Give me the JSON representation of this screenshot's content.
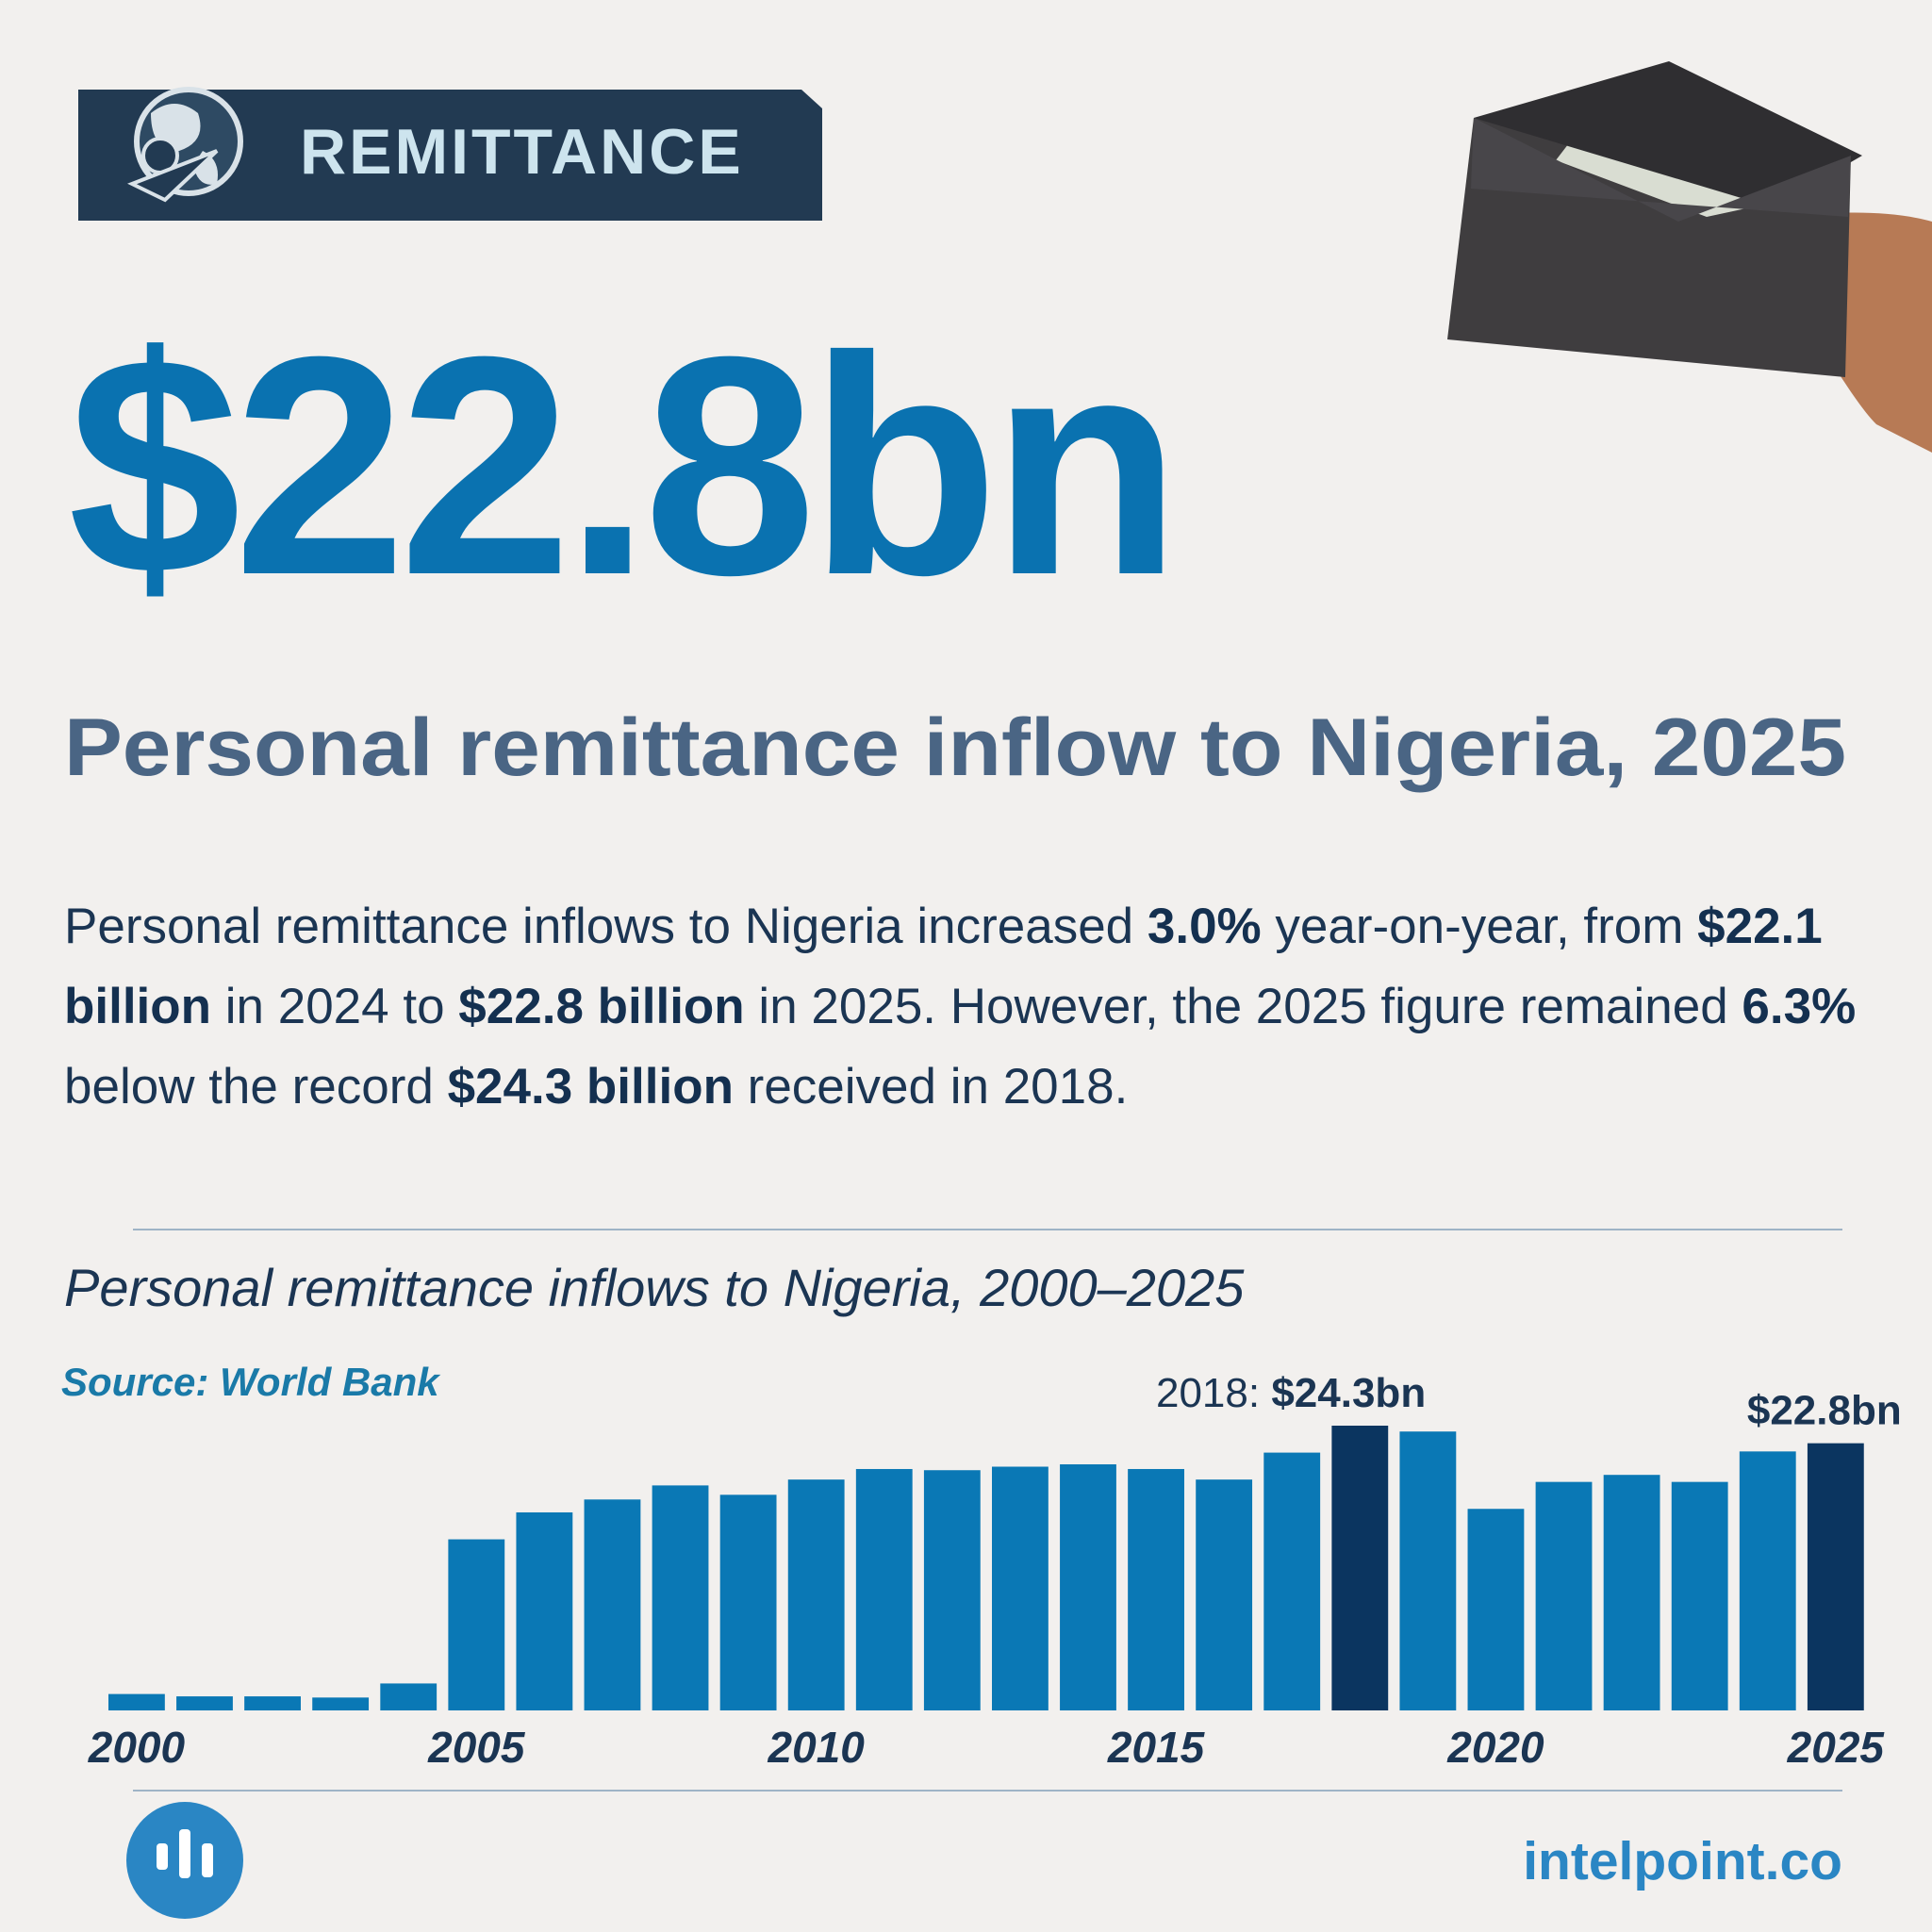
{
  "header": {
    "badge": "REMITTANCE",
    "headline_value": "$22.8bn",
    "headline": "Personal remittance inflow to Nigeria, 2025",
    "paragraph": [
      {
        "text": "Personal remittance inflows to Nigeria increased ",
        "bold": false
      },
      {
        "text": "3.0%",
        "bold": true
      },
      {
        "text": " year-on-year, from ",
        "bold": false
      },
      {
        "text": "$22.1 billion",
        "bold": true
      },
      {
        "text": " in 2024 to ",
        "bold": false
      },
      {
        "text": "$22.8 billion",
        "bold": true
      },
      {
        "text": " in 2025. However, the 2025 figure remained ",
        "bold": false
      },
      {
        "text": "6.3%",
        "bold": true
      },
      {
        "text": " below the record ",
        "bold": false
      },
      {
        "text": "$24.3 billion",
        "bold": true
      },
      {
        "text": " received in 2018.",
        "bold": false
      }
    ]
  },
  "chart_data": {
    "type": "bar",
    "title": "Personal remittance inflows to Nigeria, 2000–2025",
    "source": "Source: World Bank",
    "categories": [
      "2000",
      null,
      null,
      null,
      null,
      "2005",
      null,
      null,
      null,
      null,
      "2010",
      null,
      null,
      null,
      null,
      "2015",
      null,
      null,
      null,
      null,
      "2020",
      null,
      null,
      null,
      null,
      "2025"
    ],
    "values": [
      1.4,
      1.2,
      1.2,
      1.1,
      2.3,
      14.6,
      16.9,
      18.0,
      19.2,
      18.4,
      19.7,
      20.6,
      20.5,
      20.8,
      21.0,
      20.6,
      19.7,
      22.0,
      24.3,
      23.8,
      17.2,
      19.5,
      20.1,
      19.5,
      22.1,
      22.8
    ],
    "value_labels": [
      null,
      null,
      null,
      null,
      null,
      null,
      null,
      null,
      null,
      null,
      null,
      null,
      null,
      null,
      null,
      null,
      null,
      null,
      "$24.3bn",
      null,
      null,
      null,
      null,
      null,
      null,
      "$22.8bn"
    ],
    "annotation": "2018:",
    "color": "#0a78b5",
    "highlight_color": "#0b3560"
  },
  "footer": {
    "brand": "intelpoint.co"
  }
}
